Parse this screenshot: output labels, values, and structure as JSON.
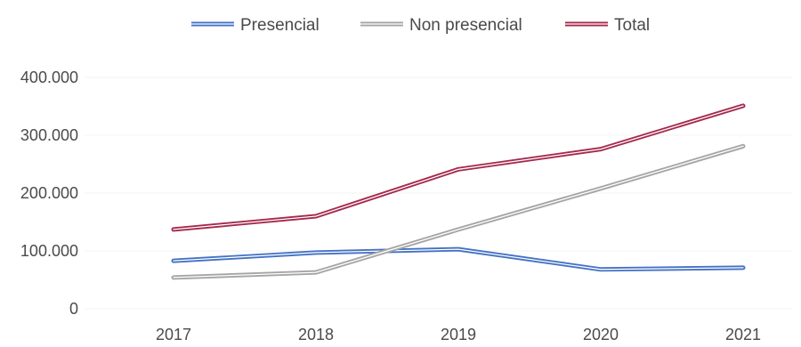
{
  "chart_data": {
    "type": "line",
    "x": [
      "2017",
      "2018",
      "2019",
      "2020",
      "2021"
    ],
    "series": [
      {
        "name": "Presencial",
        "values": [
          83000,
          97000,
          103000,
          68000,
          71000
        ],
        "color": "#4472c4"
      },
      {
        "name": "Non presencial",
        "values": [
          54000,
          63000,
          137000,
          208000,
          281000
        ],
        "color": "#a5a5a5"
      },
      {
        "name": "Total",
        "values": [
          137000,
          160000,
          241000,
          276000,
          351000
        ],
        "color": "#a5294d"
      }
    ],
    "ytick_labels": [
      "0",
      "100.000",
      "200.000",
      "300.000",
      "400.000"
    ],
    "ylim": [
      0,
      400000
    ],
    "legend_position": "top-center",
    "grid": true
  }
}
